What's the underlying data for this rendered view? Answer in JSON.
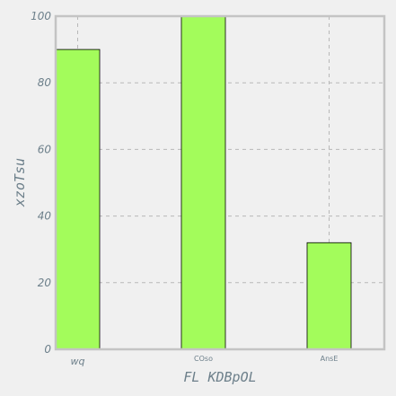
{
  "chart_data": {
    "type": "bar",
    "categories": [
      "wq",
      "COso",
      "AnsE"
    ],
    "values": [
      90,
      100,
      32
    ],
    "xlabel": "FL KDBpOL",
    "ylabel": "xzoTsu",
    "ylim": [
      0,
      100
    ],
    "yticks": [
      0,
      20,
      40,
      60,
      80,
      100
    ],
    "grid": true,
    "colors": {
      "bar": "#a3fc5b",
      "bar_edge": "#000000",
      "grid": "#b8b8b8",
      "frame": "#c4c4c4",
      "text": "#6c7f8a",
      "background": "#f0f0f0"
    }
  }
}
